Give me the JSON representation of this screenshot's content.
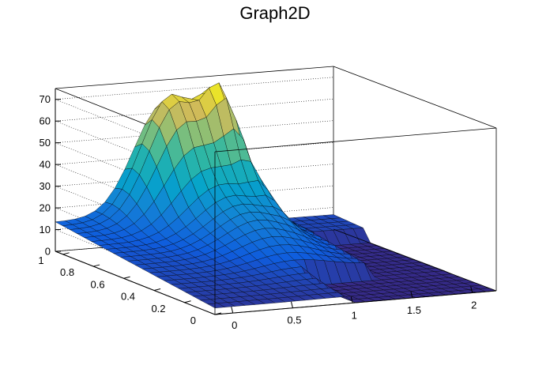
{
  "chart_data": {
    "type": "surface3d",
    "title": "Graph2D",
    "xlim": [
      -0.15,
      2.2
    ],
    "ylim": [
      0,
      1.05
    ],
    "zlim": [
      0,
      75
    ],
    "x_ticks": [
      "0",
      "0.5",
      "1",
      "1.5",
      "2"
    ],
    "y_ticks": [
      "0",
      "0.2",
      "0.4",
      "0.6",
      "0.8",
      "1"
    ],
    "z_ticks": [
      "0",
      "10",
      "20",
      "30",
      "40",
      "50",
      "60",
      "70"
    ],
    "x_tick_values": [
      0,
      0.5,
      1,
      1.5,
      2
    ],
    "y_tick_values": [
      0,
      0.2,
      0.4,
      0.6,
      0.8,
      1
    ],
    "z_tick_values": [
      0,
      10,
      20,
      30,
      40,
      50,
      60,
      70
    ],
    "grid": true,
    "palette": "viridis-like (blue to yellow)",
    "colors": {
      "low": "#2a3a9a",
      "mid": "#22a09a",
      "high": "#f5e42a"
    }
  }
}
